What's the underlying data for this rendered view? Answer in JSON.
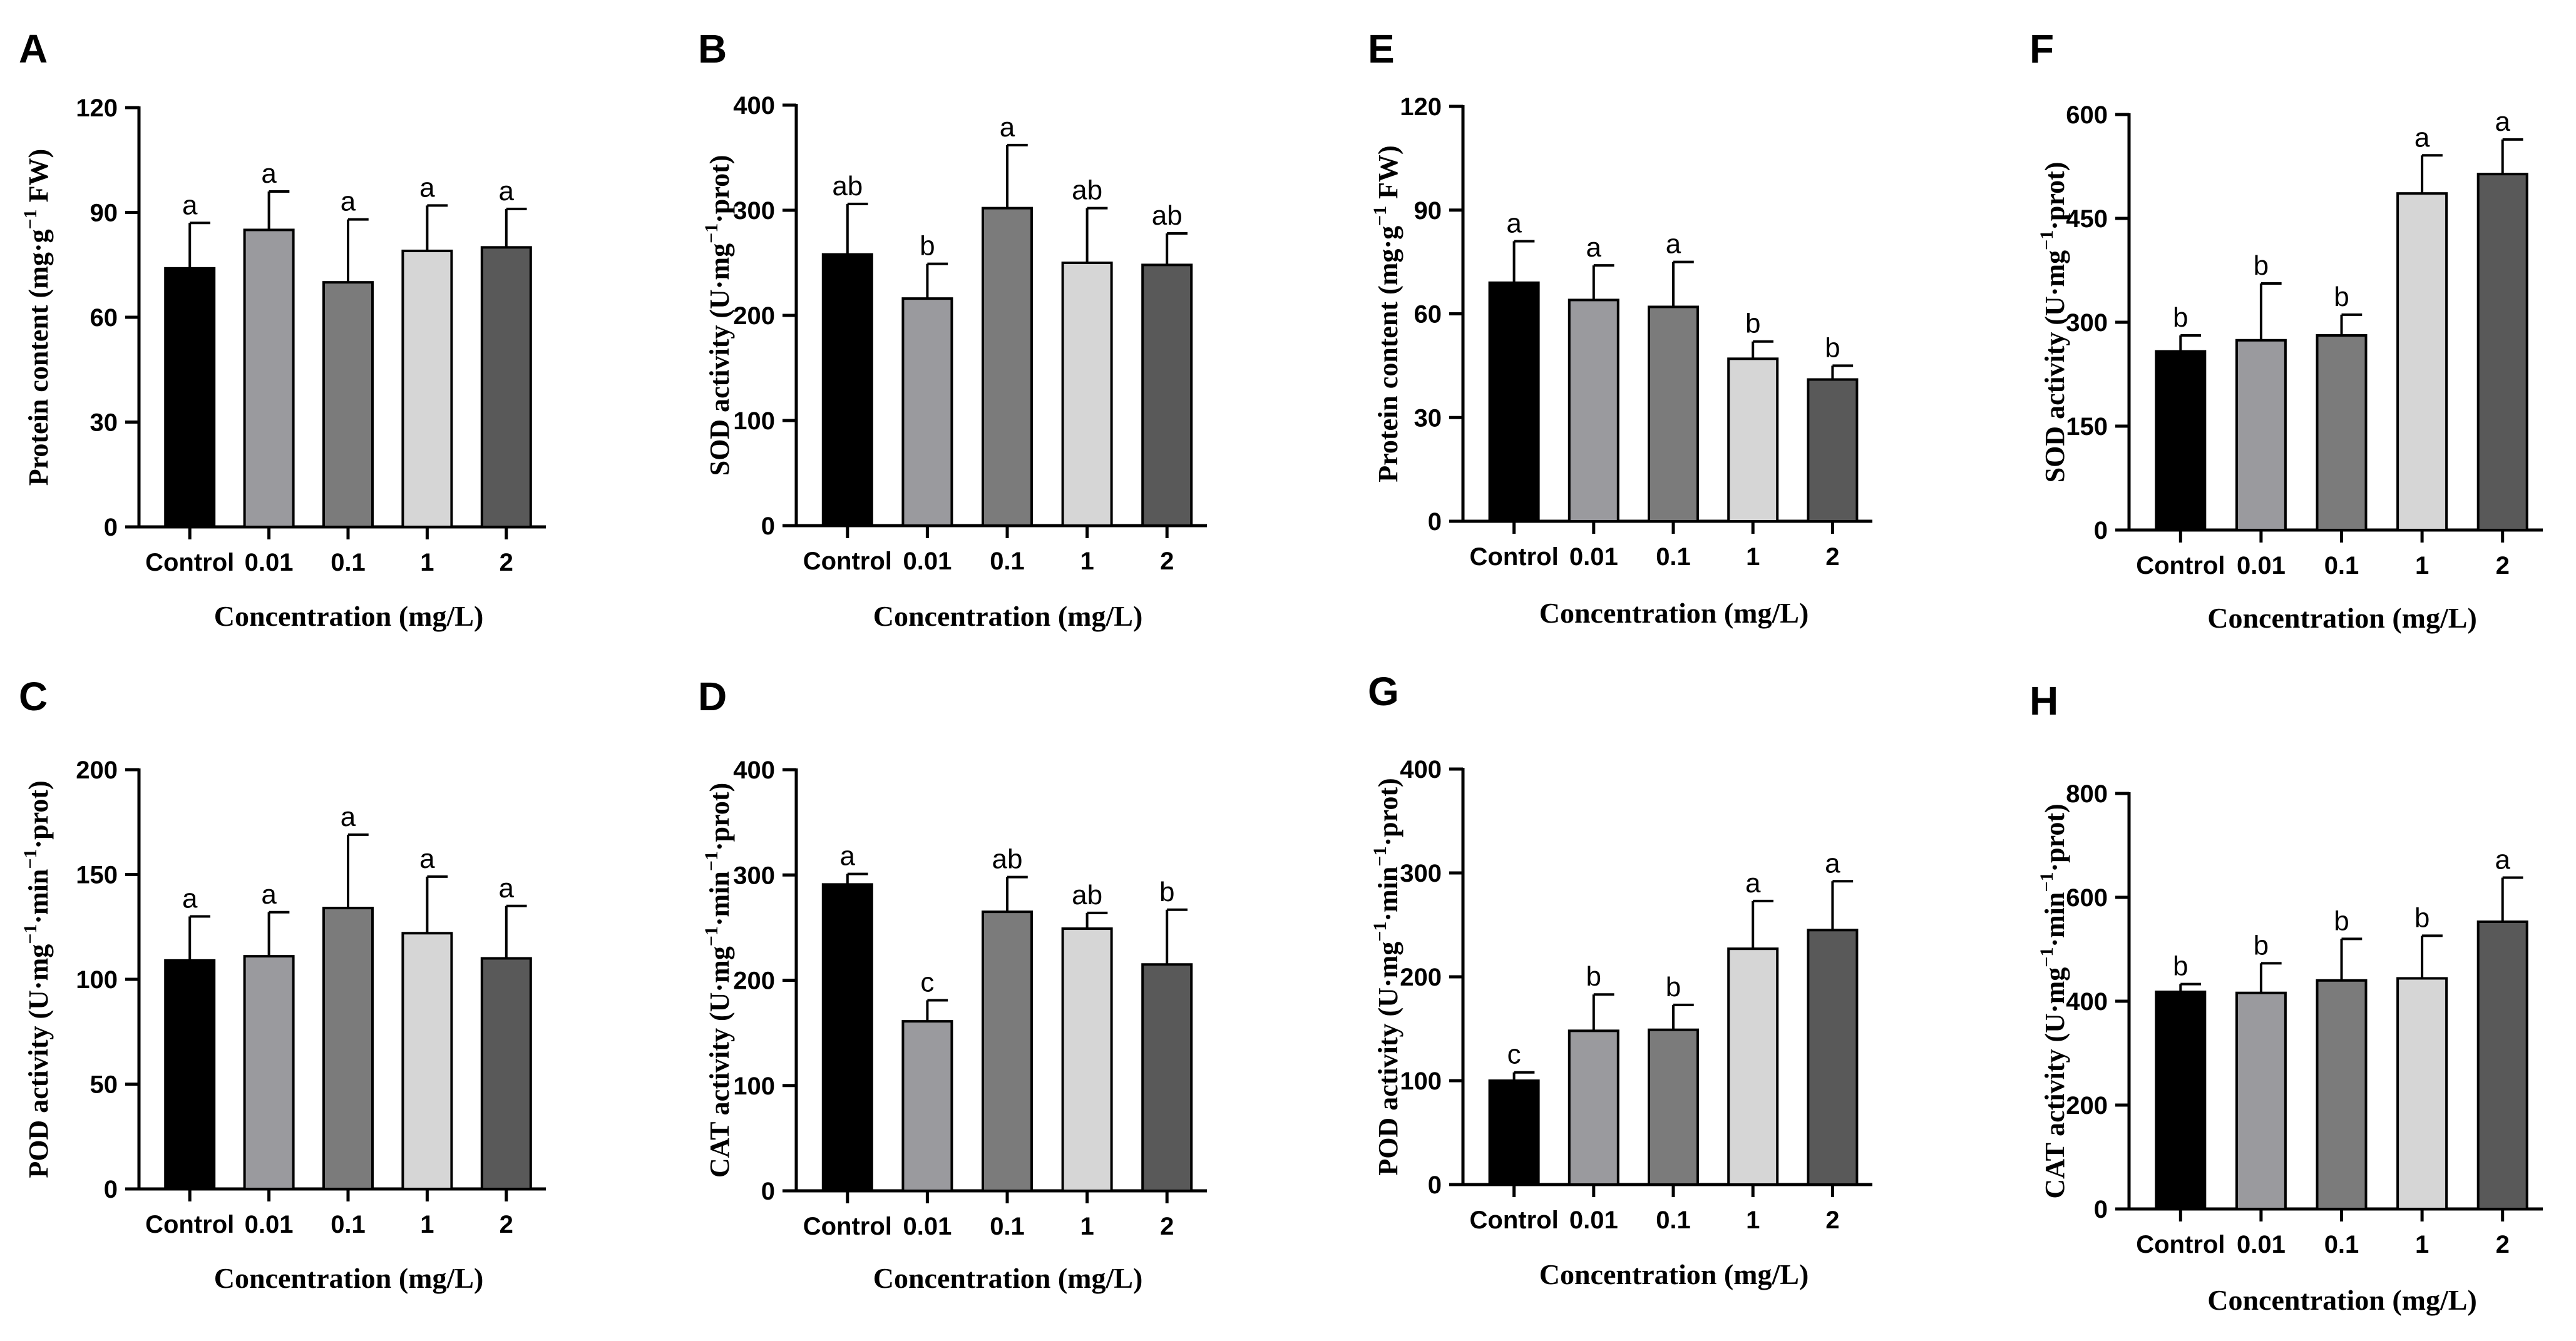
{
  "chart_data": [
    {
      "type": "bar",
      "panel": "A",
      "categories": [
        "Control",
        "0.01",
        "0.1",
        "1",
        "2"
      ],
      "values": [
        74,
        85,
        70,
        79,
        80
      ],
      "errors": [
        13,
        11,
        18,
        13,
        11
      ],
      "significance": [
        "a",
        "a",
        "a",
        "a",
        "a"
      ],
      "xlabel": "Concentration (mg/L)",
      "ylabel": "Protein content (mg·g",
      "ylabel_sup": "−1",
      "ylabel_tail": " FW)",
      "ylim": [
        0,
        120
      ],
      "yticks": [
        0,
        30,
        60,
        90,
        120
      ]
    },
    {
      "type": "bar",
      "panel": "B",
      "categories": [
        "Control",
        "0.01",
        "0.1",
        "1",
        "2"
      ],
      "values": [
        258,
        216,
        302,
        250,
        248
      ],
      "errors": [
        48,
        33,
        60,
        52,
        30
      ],
      "significance": [
        "ab",
        "b",
        "a",
        "ab",
        "ab"
      ],
      "xlabel": "Concentration (mg/L)",
      "ylabel": "SOD activity (U·mg",
      "ylabel_sup": "−1",
      "ylabel_tail": "·prot)",
      "ylim": [
        0,
        400
      ],
      "yticks": [
        0,
        100,
        200,
        300,
        400
      ]
    },
    {
      "type": "bar",
      "panel": "C",
      "categories": [
        "Control",
        "0.01",
        "0.1",
        "1",
        "2"
      ],
      "values": [
        109,
        111,
        134,
        122,
        110
      ],
      "errors": [
        21,
        21,
        35,
        27,
        25
      ],
      "significance": [
        "a",
        "a",
        "a",
        "a",
        "a"
      ],
      "xlabel": "Concentration (mg/L)",
      "ylabel": "POD activity (U·mg",
      "ylabel_sup": "−1",
      "ylabel_tail": "·min",
      "ylabel_sup2": "−1",
      "ylabel_tail2": "·prot)",
      "ylim": [
        0,
        200
      ],
      "yticks": [
        0,
        50,
        100,
        150,
        200
      ]
    },
    {
      "type": "bar",
      "panel": "D",
      "categories": [
        "Control",
        "0.01",
        "0.1",
        "1",
        "2"
      ],
      "values": [
        291,
        161,
        265,
        249,
        215
      ],
      "errors": [
        10,
        20,
        33,
        15,
        52
      ],
      "significance": [
        "a",
        "c",
        "ab",
        "ab",
        "b"
      ],
      "xlabel": "Concentration (mg/L)",
      "ylabel": "CAT activity (U·mg",
      "ylabel_sup": "−1",
      "ylabel_tail": "·min",
      "ylabel_sup2": "−1",
      "ylabel_tail2": "·prot)",
      "ylim": [
        0,
        400
      ],
      "yticks": [
        0,
        100,
        200,
        300,
        400
      ]
    },
    {
      "type": "bar",
      "panel": "E",
      "categories": [
        "Control",
        "0.01",
        "0.1",
        "1",
        "2"
      ],
      "values": [
        69,
        64,
        62,
        47,
        41
      ],
      "errors": [
        12,
        10,
        13,
        5,
        4
      ],
      "significance": [
        "a",
        "a",
        "a",
        "b",
        "b"
      ],
      "xlabel": "Concentration (mg/L)",
      "ylabel": "Protein content (mg·g",
      "ylabel_sup": "−1",
      "ylabel_tail": " FW)",
      "ylim": [
        0,
        120
      ],
      "yticks": [
        0,
        30,
        60,
        90,
        120
      ]
    },
    {
      "type": "bar",
      "panel": "F",
      "categories": [
        "Control",
        "0.01",
        "0.1",
        "1",
        "2"
      ],
      "values": [
        258,
        274,
        281,
        486,
        514
      ],
      "errors": [
        23,
        82,
        30,
        55,
        50
      ],
      "significance": [
        "b",
        "b",
        "b",
        "a",
        "a"
      ],
      "xlabel": "Concentration (mg/L)",
      "ylabel": "SOD activity (U·mg",
      "ylabel_sup": "−1",
      "ylabel_tail": "·prot)",
      "ylim": [
        0,
        600
      ],
      "yticks": [
        0,
        150,
        300,
        450,
        600
      ]
    },
    {
      "type": "bar",
      "panel": "G",
      "categories": [
        "Control",
        "0.01",
        "0.1",
        "1",
        "2"
      ],
      "values": [
        100,
        148,
        149,
        227,
        245
      ],
      "errors": [
        8,
        35,
        24,
        46,
        47
      ],
      "significance": [
        "c",
        "b",
        "b",
        "a",
        "a"
      ],
      "xlabel": "Concentration (mg/L)",
      "ylabel": "POD activity (U·mg",
      "ylabel_sup": "−1",
      "ylabel_tail": "·min",
      "ylabel_sup2": "−1",
      "ylabel_tail2": "·prot)",
      "ylim": [
        0,
        400
      ],
      "yticks": [
        0,
        100,
        200,
        300,
        400
      ]
    },
    {
      "type": "bar",
      "panel": "H",
      "categories": [
        "Control",
        "0.01",
        "0.1",
        "1",
        "2"
      ],
      "values": [
        418,
        416,
        440,
        444,
        553
      ],
      "errors": [
        15,
        57,
        80,
        82,
        85
      ],
      "significance": [
        "b",
        "b",
        "b",
        "b",
        "a"
      ],
      "xlabel": "Concentration (mg/L)",
      "ylabel": "CAT activity (U·mg",
      "ylabel_sup": "−1",
      "ylabel_tail": "·min",
      "ylabel_sup2": "−1",
      "ylabel_tail2": "·prot)",
      "ylim": [
        0,
        800
      ],
      "yticks": [
        0,
        200,
        400,
        600,
        800
      ]
    }
  ],
  "bar_colors": [
    "#000000",
    "#9a9a9e",
    "#7b7b7b",
    "#d6d6d6",
    "#595959"
  ]
}
